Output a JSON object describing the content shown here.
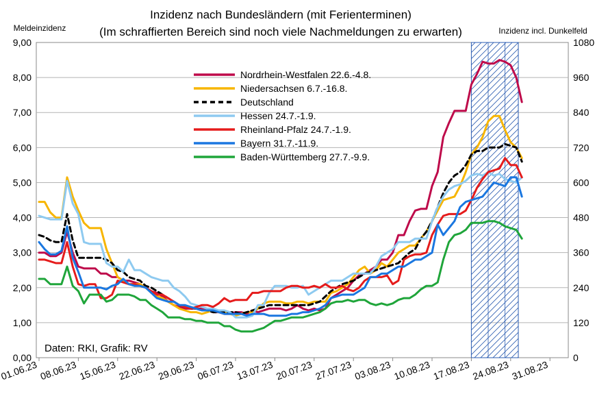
{
  "chart_data": {
    "type": "line",
    "title_line1": "Inzidenz nach Bundesländern (mit Ferienterminen)",
    "title_line2": "(Im schraffierten Bereich sind noch viele Nachmeldungen zu erwarten)",
    "ylabel_left": "Meldeinzidenz",
    "ylabel_right": "Inzidenz incl. Dunkelfeld",
    "credit": "Daten: RKI, Grafik: RV",
    "ylim": [
      0,
      9
    ],
    "ylim_right": [
      0,
      1080
    ],
    "y_ticks": [
      "0,00",
      "1,00",
      "2,00",
      "3,00",
      "4,00",
      "5,00",
      "6,00",
      "7,00",
      "8,00",
      "9,00"
    ],
    "y2_ticks": [
      "0",
      "120",
      "240",
      "360",
      "480",
      "600",
      "720",
      "840",
      "960",
      "1080"
    ],
    "x_tick_labels": [
      "01.06.23",
      "08.06.23",
      "15.06.23",
      "22.06.23",
      "29.06.23",
      "06.07.23",
      "13.07.23",
      "20.07.23",
      "27.07.23",
      "03.08.23",
      "10.08.23",
      "17.08.23",
      "24.08.23",
      "31.08.23"
    ],
    "grid": true,
    "legend_position": "top-center",
    "hatched_region_days": [
      77,
      85
    ],
    "series": [
      {
        "name": "Nordrhein-Westfalen 22.6.-4.8.",
        "color": "#be0a4a",
        "values": [
          3.0,
          3.0,
          2.9,
          2.9,
          3.0,
          3.6,
          3.0,
          2.6,
          2.55,
          2.55,
          2.55,
          2.4,
          2.4,
          2.3,
          2.3,
          2.2,
          2.2,
          2.15,
          2.1,
          2.0,
          1.9,
          1.85,
          1.75,
          1.6,
          1.5,
          1.45,
          1.4,
          1.4,
          1.4,
          1.4,
          1.35,
          1.3,
          1.3,
          1.25,
          1.25,
          1.3,
          1.3,
          1.25,
          1.35,
          1.3,
          1.35,
          1.4,
          1.4,
          1.4,
          1.35,
          1.4,
          1.5,
          1.4,
          1.35,
          1.4,
          1.35,
          1.4,
          1.7,
          1.8,
          1.9,
          2.0,
          2.2,
          2.35,
          2.4,
          2.5,
          2.6,
          2.8,
          2.8,
          3.0,
          3.5,
          3.5,
          3.9,
          4.2,
          4.25,
          4.25,
          4.9,
          5.3,
          6.3,
          6.7,
          7.05,
          7.05,
          7.05,
          7.8,
          8.1,
          8.45,
          8.4,
          8.4,
          8.5,
          8.45,
          8.35,
          8.0,
          7.3
        ]
      },
      {
        "name": "Niedersachsen 6.7.-16.8.",
        "color": "#f7b500",
        "values": [
          4.45,
          4.45,
          4.15,
          4.0,
          4.0,
          5.15,
          4.6,
          4.2,
          3.85,
          3.7,
          3.7,
          3.7,
          3.1,
          2.7,
          2.3,
          2.2,
          2.1,
          2.1,
          2.1,
          2.0,
          1.85,
          1.75,
          1.7,
          1.6,
          1.5,
          1.4,
          1.35,
          1.3,
          1.3,
          1.25,
          1.3,
          1.35,
          1.3,
          1.3,
          1.25,
          1.2,
          1.25,
          1.3,
          1.3,
          1.4,
          1.55,
          1.6,
          1.6,
          1.6,
          1.55,
          1.55,
          1.6,
          1.6,
          1.55,
          1.6,
          1.6,
          1.6,
          1.85,
          1.9,
          2.0,
          2.1,
          2.3,
          2.5,
          2.6,
          2.4,
          2.5,
          2.7,
          2.6,
          2.8,
          3.0,
          3.1,
          3.2,
          3.2,
          3.4,
          3.6,
          3.9,
          4.2,
          4.5,
          4.55,
          4.6,
          4.9,
          5.3,
          5.8,
          6.0,
          6.3,
          6.75,
          6.9,
          6.9,
          6.5,
          6.15,
          6.0,
          5.7
        ]
      },
      {
        "name": "Deutschland",
        "color": "#000000",
        "dashed": true,
        "values": [
          3.5,
          3.45,
          3.35,
          3.3,
          3.3,
          4.1,
          3.35,
          2.85,
          2.85,
          2.85,
          2.85,
          2.85,
          2.8,
          2.7,
          2.5,
          2.45,
          2.3,
          2.25,
          2.2,
          2.05,
          2.0,
          1.9,
          1.8,
          1.7,
          1.6,
          1.5,
          1.45,
          1.4,
          1.4,
          1.35,
          1.35,
          1.3,
          1.3,
          1.3,
          1.3,
          1.3,
          1.25,
          1.3,
          1.35,
          1.4,
          1.45,
          1.5,
          1.5,
          1.5,
          1.5,
          1.5,
          1.5,
          1.5,
          1.5,
          1.55,
          1.6,
          1.75,
          1.9,
          2.0,
          2.1,
          2.15,
          2.2,
          2.3,
          2.4,
          2.45,
          2.5,
          2.55,
          2.6,
          2.65,
          2.7,
          2.85,
          3.0,
          3.1,
          3.4,
          3.6,
          3.9,
          4.3,
          4.7,
          5.0,
          5.2,
          5.3,
          5.5,
          5.8,
          5.9,
          5.9,
          6.0,
          6.0,
          6.0,
          6.1,
          6.05,
          6.0,
          5.6
        ]
      },
      {
        "name": "Hessen 24.7.-1.9.",
        "color": "#8ecaf0",
        "values": [
          4.05,
          4.0,
          3.95,
          3.95,
          3.95,
          5.05,
          4.4,
          4.1,
          3.3,
          3.25,
          3.25,
          3.25,
          2.7,
          2.6,
          2.6,
          2.45,
          2.8,
          2.5,
          2.5,
          2.4,
          2.3,
          2.25,
          2.2,
          2.2,
          2.0,
          1.9,
          1.75,
          1.55,
          1.5,
          1.45,
          1.4,
          1.4,
          1.35,
          1.35,
          1.3,
          1.15,
          1.15,
          1.15,
          1.2,
          1.5,
          1.5,
          1.85,
          2.05,
          2.05,
          2.05,
          2.0,
          2.0,
          2.05,
          1.8,
          1.9,
          2.0,
          2.1,
          2.2,
          2.2,
          2.2,
          2.3,
          2.4,
          2.4,
          2.4,
          2.4,
          2.6,
          2.9,
          3.0,
          3.1,
          3.3,
          3.3,
          3.3,
          3.4,
          3.4,
          3.4,
          3.9,
          4.3,
          4.6,
          4.8,
          4.9,
          4.95,
          5.05,
          5.2,
          5.25,
          5.2,
          5.3,
          5.2,
          5.25,
          5.1,
          5.05,
          5.0,
          5.15
        ]
      },
      {
        "name": "Rheinland-Pfalz 24.7.-1.9.",
        "color": "#e51b1b",
        "values": [
          2.8,
          2.8,
          2.75,
          2.7,
          2.7,
          3.3,
          2.6,
          2.1,
          2.05,
          2.1,
          2.1,
          1.7,
          1.7,
          1.8,
          2.2,
          2.15,
          2.1,
          2.1,
          2.05,
          2.0,
          1.9,
          1.8,
          1.8,
          1.7,
          1.6,
          1.5,
          1.45,
          1.4,
          1.45,
          1.5,
          1.5,
          1.45,
          1.55,
          1.7,
          1.6,
          1.65,
          1.65,
          1.65,
          1.85,
          1.85,
          1.9,
          1.9,
          1.9,
          1.9,
          2.0,
          2.05,
          2.05,
          2.0,
          2.0,
          2.05,
          2.0,
          2.1,
          2.0,
          2.0,
          2.05,
          1.95,
          1.9,
          2.0,
          2.2,
          2.3,
          2.3,
          2.3,
          2.35,
          2.1,
          2.2,
          2.8,
          2.9,
          2.95,
          2.95,
          3.0,
          3.5,
          3.8,
          4.05,
          4.1,
          4.1,
          4.1,
          4.2,
          4.5,
          4.85,
          5.1,
          5.3,
          5.35,
          5.4,
          5.7,
          5.5,
          5.5,
          5.15
        ]
      },
      {
        "name": "Bayern 31.7.-11.9.",
        "color": "#1a77e0",
        "values": [
          3.3,
          3.1,
          2.95,
          2.95,
          3.05,
          3.75,
          2.85,
          2.45,
          2.0,
          2.0,
          2.0,
          2.0,
          1.95,
          2.05,
          2.1,
          2.25,
          2.1,
          2.05,
          2.05,
          2.0,
          1.85,
          1.7,
          1.65,
          1.6,
          1.6,
          1.5,
          1.5,
          1.45,
          1.4,
          1.35,
          1.35,
          1.35,
          1.3,
          1.25,
          1.25,
          1.25,
          1.25,
          1.2,
          1.25,
          1.25,
          1.25,
          1.2,
          1.2,
          1.2,
          1.2,
          1.25,
          1.25,
          1.3,
          1.3,
          1.35,
          1.4,
          1.5,
          1.7,
          1.75,
          1.8,
          1.8,
          1.8,
          1.9,
          2.0,
          2.3,
          2.3,
          2.4,
          2.4,
          2.5,
          2.6,
          2.6,
          2.7,
          2.8,
          2.8,
          2.9,
          3.0,
          3.8,
          3.5,
          3.7,
          3.9,
          4.3,
          4.45,
          4.5,
          4.55,
          4.6,
          4.8,
          5.0,
          4.95,
          4.9,
          5.15,
          5.15,
          4.6
        ]
      },
      {
        "name": "Baden-Württemberg 27.7.-9.9.",
        "color": "#1fa53a",
        "values": [
          2.25,
          2.25,
          2.1,
          2.1,
          2.1,
          2.6,
          2.05,
          1.9,
          1.55,
          1.8,
          1.8,
          1.8,
          1.6,
          1.65,
          1.8,
          1.8,
          1.8,
          1.75,
          1.65,
          1.65,
          1.5,
          1.4,
          1.3,
          1.15,
          1.15,
          1.15,
          1.1,
          1.1,
          1.05,
          1.05,
          1.0,
          1.0,
          1.0,
          0.9,
          0.9,
          0.8,
          0.75,
          0.75,
          0.75,
          0.8,
          0.85,
          0.95,
          1.05,
          1.05,
          1.1,
          1.15,
          1.15,
          1.15,
          1.2,
          1.25,
          1.3,
          1.4,
          1.55,
          1.6,
          1.6,
          1.65,
          1.6,
          1.65,
          1.65,
          1.55,
          1.5,
          1.55,
          1.5,
          1.55,
          1.65,
          1.7,
          1.7,
          1.8,
          1.95,
          2.05,
          2.05,
          2.15,
          2.8,
          3.3,
          3.5,
          3.55,
          3.65,
          3.85,
          3.85,
          3.85,
          3.9,
          3.9,
          3.85,
          3.75,
          3.7,
          3.65,
          3.4
        ]
      }
    ]
  }
}
